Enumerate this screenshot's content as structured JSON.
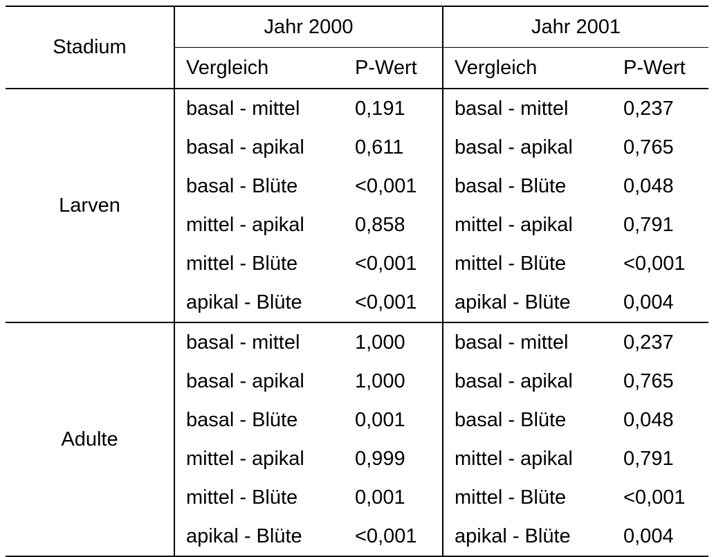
{
  "header": {
    "stadium": "Stadium",
    "year1": "Jahr 2000",
    "year2": "Jahr 2001",
    "vergleich": "Vergleich",
    "pwert": "P-Wert"
  },
  "groups": [
    {
      "stage": "Larven",
      "rows": [
        {
          "cmp1": "basal - mittel",
          "p1": "0,191",
          "cmp2": "basal - mittel",
          "p2": "0,237"
        },
        {
          "cmp1": "basal - apikal",
          "p1": "0,611",
          "cmp2": "basal - apikal",
          "p2": "0,765"
        },
        {
          "cmp1": "basal - Blüte",
          "p1": "<0,001",
          "cmp2": "basal - Blüte",
          "p2": "0,048"
        },
        {
          "cmp1": "mittel - apikal",
          "p1": "0,858",
          "cmp2": "mittel - apikal",
          "p2": "0,791"
        },
        {
          "cmp1": "mittel - Blüte",
          "p1": "<0,001",
          "cmp2": "mittel - Blüte",
          "p2": "<0,001"
        },
        {
          "cmp1": "apikal - Blüte",
          "p1": "<0,001",
          "cmp2": "apikal - Blüte",
          "p2": "0,004"
        }
      ]
    },
    {
      "stage": "Adulte",
      "rows": [
        {
          "cmp1": "basal - mittel",
          "p1": "1,000",
          "cmp2": "basal - mittel",
          "p2": "0,237"
        },
        {
          "cmp1": "basal - apikal",
          "p1": "1,000",
          "cmp2": "basal - apikal",
          "p2": "0,765"
        },
        {
          "cmp1": "basal - Blüte",
          "p1": "0,001",
          "cmp2": "basal - Blüte",
          "p2": "0,048"
        },
        {
          "cmp1": "mittel - apikal",
          "p1": "0,999",
          "cmp2": "mittel - apikal",
          "p2": "0,791"
        },
        {
          "cmp1": "mittel - Blüte",
          "p1": "0,001",
          "cmp2": "mittel - Blüte",
          "p2": "<0,001"
        },
        {
          "cmp1": "apikal - Blüte",
          "p1": "<0,001",
          "cmp2": "apikal - Blüte",
          "p2": "0,004"
        }
      ]
    }
  ]
}
